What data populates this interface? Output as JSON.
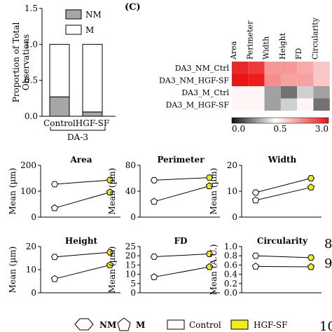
{
  "panel_label": "(C)",
  "edge_fragments": [
    "8",
    "9",
    "10"
  ],
  "legend_bottom": {
    "nm_label": "NM",
    "m_label": "M",
    "control_label": "Control",
    "hgf_label": "HGF-SF",
    "control_color": "#ffffff",
    "hgf_color": "#f2ea1a"
  },
  "chart_data": [
    {
      "type": "bar",
      "stacked": true,
      "ylabel": "Proportion of Total Observations",
      "ylim": [
        0,
        1.5
      ],
      "yticks": [
        "0.0",
        "0.5",
        "1.0",
        "1.5"
      ],
      "categories": [
        "Control",
        "HGF-SF"
      ],
      "group_label": "DA-3",
      "series": [
        {
          "name": "NM",
          "values": [
            0.27,
            0.06
          ],
          "color": "#a6a6a6"
        },
        {
          "name": "M",
          "values": [
            0.73,
            0.94
          ],
          "color": "#ffffff"
        }
      ],
      "legend_position": "top-right"
    },
    {
      "type": "heatmap",
      "rows": [
        "DA3_NM_Ctrl",
        "DA3_NM_HGF-SF",
        "DA3_M_Ctrl",
        "DA3_M_HGF-SF"
      ],
      "columns": [
        "Area",
        "Perimeter",
        "Width",
        "Height",
        "FD",
        "Circularity"
      ],
      "values": [
        [
          2.8,
          2.6,
          1.6,
          1.6,
          1.4,
          1.1
        ],
        [
          3.0,
          2.9,
          1.7,
          1.5,
          1.5,
          1.1
        ],
        [
          0.6,
          0.6,
          0.3,
          0.2,
          0.4,
          0.3
        ],
        [
          0.6,
          0.6,
          0.3,
          0.4,
          0.6,
          0.2
        ]
      ],
      "colorbar": {
        "min": 0.0,
        "mid": 0.5,
        "max": 3.0,
        "ticks": [
          "0.0",
          "0.5",
          "3.0"
        ]
      }
    },
    {
      "type": "line",
      "title": "Area",
      "ylabel": "Mean (µm)",
      "ylim": [
        0,
        200
      ],
      "yticks": [
        "0",
        "100",
        "200"
      ],
      "series": [
        {
          "name": "NM",
          "values": [
            127,
            143
          ]
        },
        {
          "name": "M",
          "values": [
            35,
            96
          ]
        }
      ]
    },
    {
      "type": "line",
      "title": "Perimeter",
      "ylabel": "Mean (µm)",
      "ylim": [
        0,
        80
      ],
      "yticks": [
        "0",
        "40",
        "80"
      ],
      "series": [
        {
          "name": "NM",
          "values": [
            57,
            61
          ]
        },
        {
          "name": "M",
          "values": [
            24,
            48
          ]
        }
      ]
    },
    {
      "type": "line",
      "title": "Width",
      "ylabel": "Mean (µm)",
      "ylim": [
        0,
        20
      ],
      "yticks": [
        "0",
        "10",
        "20"
      ],
      "series": [
        {
          "name": "NM",
          "values": [
            9.5,
            15
          ]
        },
        {
          "name": "M",
          "values": [
            6.5,
            11.5
          ]
        }
      ]
    },
    {
      "type": "line",
      "title": "Height",
      "ylabel": "Mean (µm)",
      "ylim": [
        0,
        20
      ],
      "yticks": [
        "0",
        "10",
        "20"
      ],
      "series": [
        {
          "name": "NM",
          "values": [
            15.5,
            17.5
          ]
        },
        {
          "name": "M",
          "values": [
            6,
            12
          ]
        }
      ]
    },
    {
      "type": "line",
      "title": "FD",
      "ylabel": "Mean (µm)",
      "ylim": [
        0,
        25
      ],
      "yticks": [
        "0",
        "5",
        "10",
        "15",
        "20",
        "25"
      ],
      "series": [
        {
          "name": "NM",
          "values": [
            19.5,
            21
          ]
        },
        {
          "name": "M",
          "values": [
            8.5,
            14
          ]
        }
      ]
    },
    {
      "type": "line",
      "title": "Circularity",
      "ylabel": "Mean (A.U.)",
      "ylim": [
        0,
        1.0
      ],
      "yticks": [
        "0.0",
        "0.2",
        "0.4",
        "0.6",
        "0.8",
        "1.0"
      ],
      "series": [
        {
          "name": "NM",
          "values": [
            0.8,
            0.76
          ]
        },
        {
          "name": "M",
          "values": [
            0.57,
            0.56
          ]
        }
      ]
    }
  ]
}
